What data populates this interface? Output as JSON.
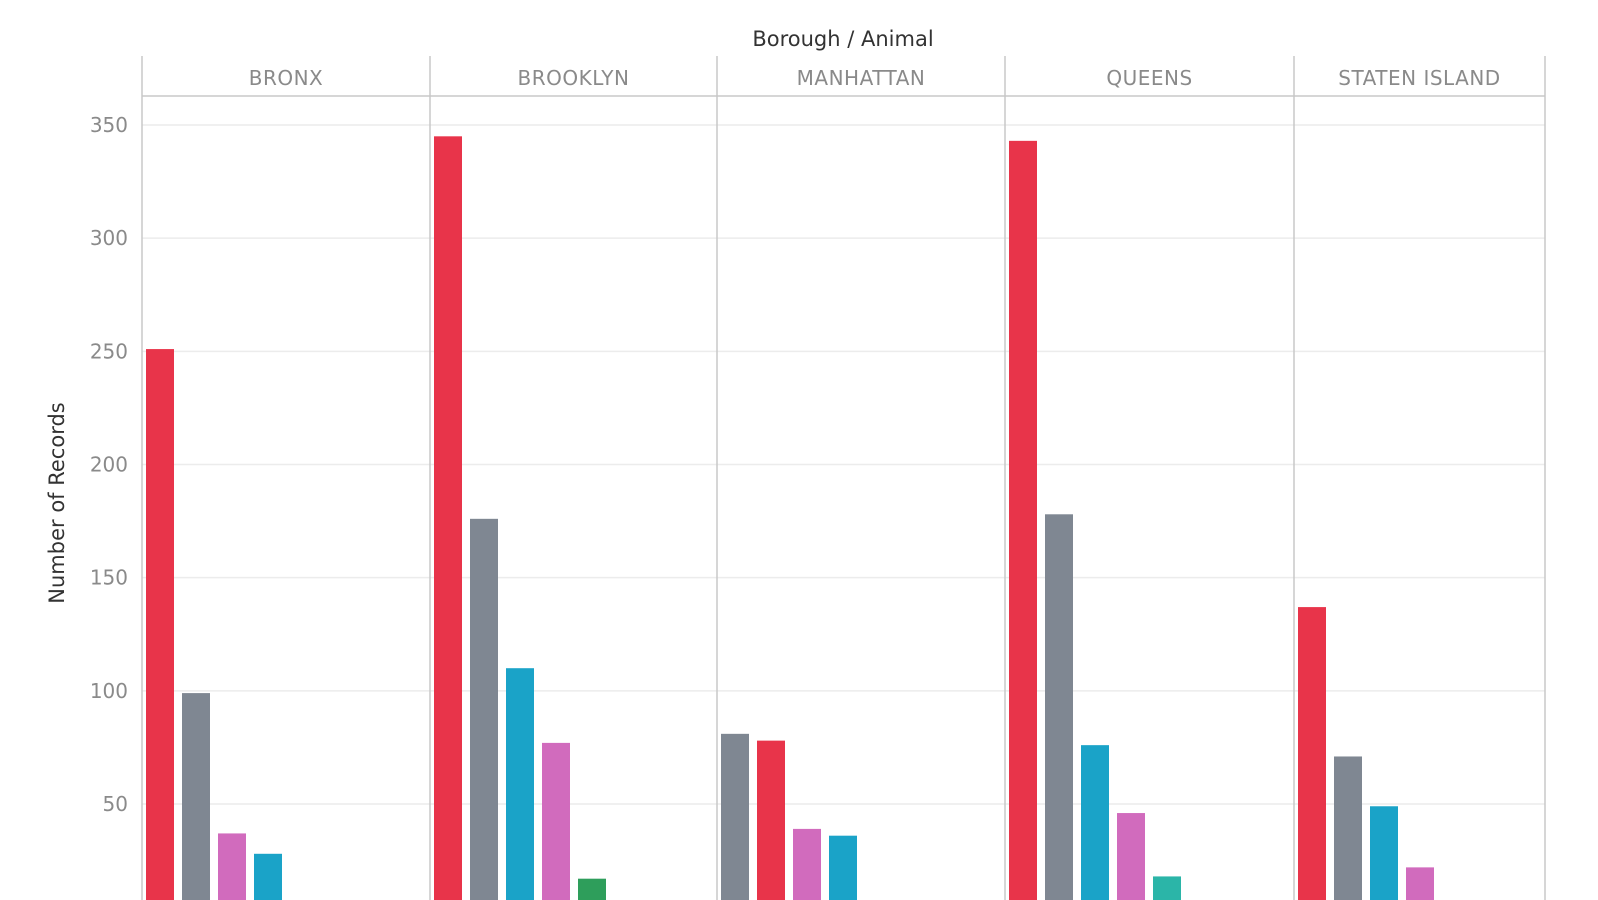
{
  "chart_data": {
    "type": "bar",
    "header": "Borough / Animal",
    "ylabel": "Number of Records",
    "ylim": [
      15,
      360
    ],
    "yticks": [
      50,
      100,
      150,
      200,
      250,
      300,
      350
    ],
    "grid": true,
    "panels": [
      {
        "name": "BRONX",
        "bars": [
          {
            "value": 251,
            "color": "#e8344a"
          },
          {
            "value": 99,
            "color": "#7f8792"
          },
          {
            "value": 37,
            "color": "#d16bbd"
          },
          {
            "value": 28,
            "color": "#1aa3c8"
          }
        ]
      },
      {
        "name": "BROOKLYN",
        "bars": [
          {
            "value": 345,
            "color": "#e8344a"
          },
          {
            "value": 176,
            "color": "#7f8792"
          },
          {
            "value": 110,
            "color": "#1aa3c8"
          },
          {
            "value": 77,
            "color": "#d16bbd"
          },
          {
            "value": 17,
            "color": "#2e9e5b"
          }
        ]
      },
      {
        "name": "MANHATTAN",
        "bars": [
          {
            "value": 81,
            "color": "#7f8792"
          },
          {
            "value": 78,
            "color": "#e8344a"
          },
          {
            "value": 39,
            "color": "#d16bbd"
          },
          {
            "value": 36,
            "color": "#1aa3c8"
          }
        ]
      },
      {
        "name": "QUEENS",
        "bars": [
          {
            "value": 343,
            "color": "#e8344a"
          },
          {
            "value": 178,
            "color": "#7f8792"
          },
          {
            "value": 76,
            "color": "#1aa3c8"
          },
          {
            "value": 46,
            "color": "#d16bbd"
          },
          {
            "value": 18,
            "color": "#2bb5a8"
          }
        ]
      },
      {
        "name": "STATEN ISLAND",
        "bars": [
          {
            "value": 137,
            "color": "#e8344a"
          },
          {
            "value": 71,
            "color": "#7f8792"
          },
          {
            "value": 49,
            "color": "#1aa3c8"
          },
          {
            "value": 22,
            "color": "#d16bbd"
          }
        ]
      }
    ]
  }
}
